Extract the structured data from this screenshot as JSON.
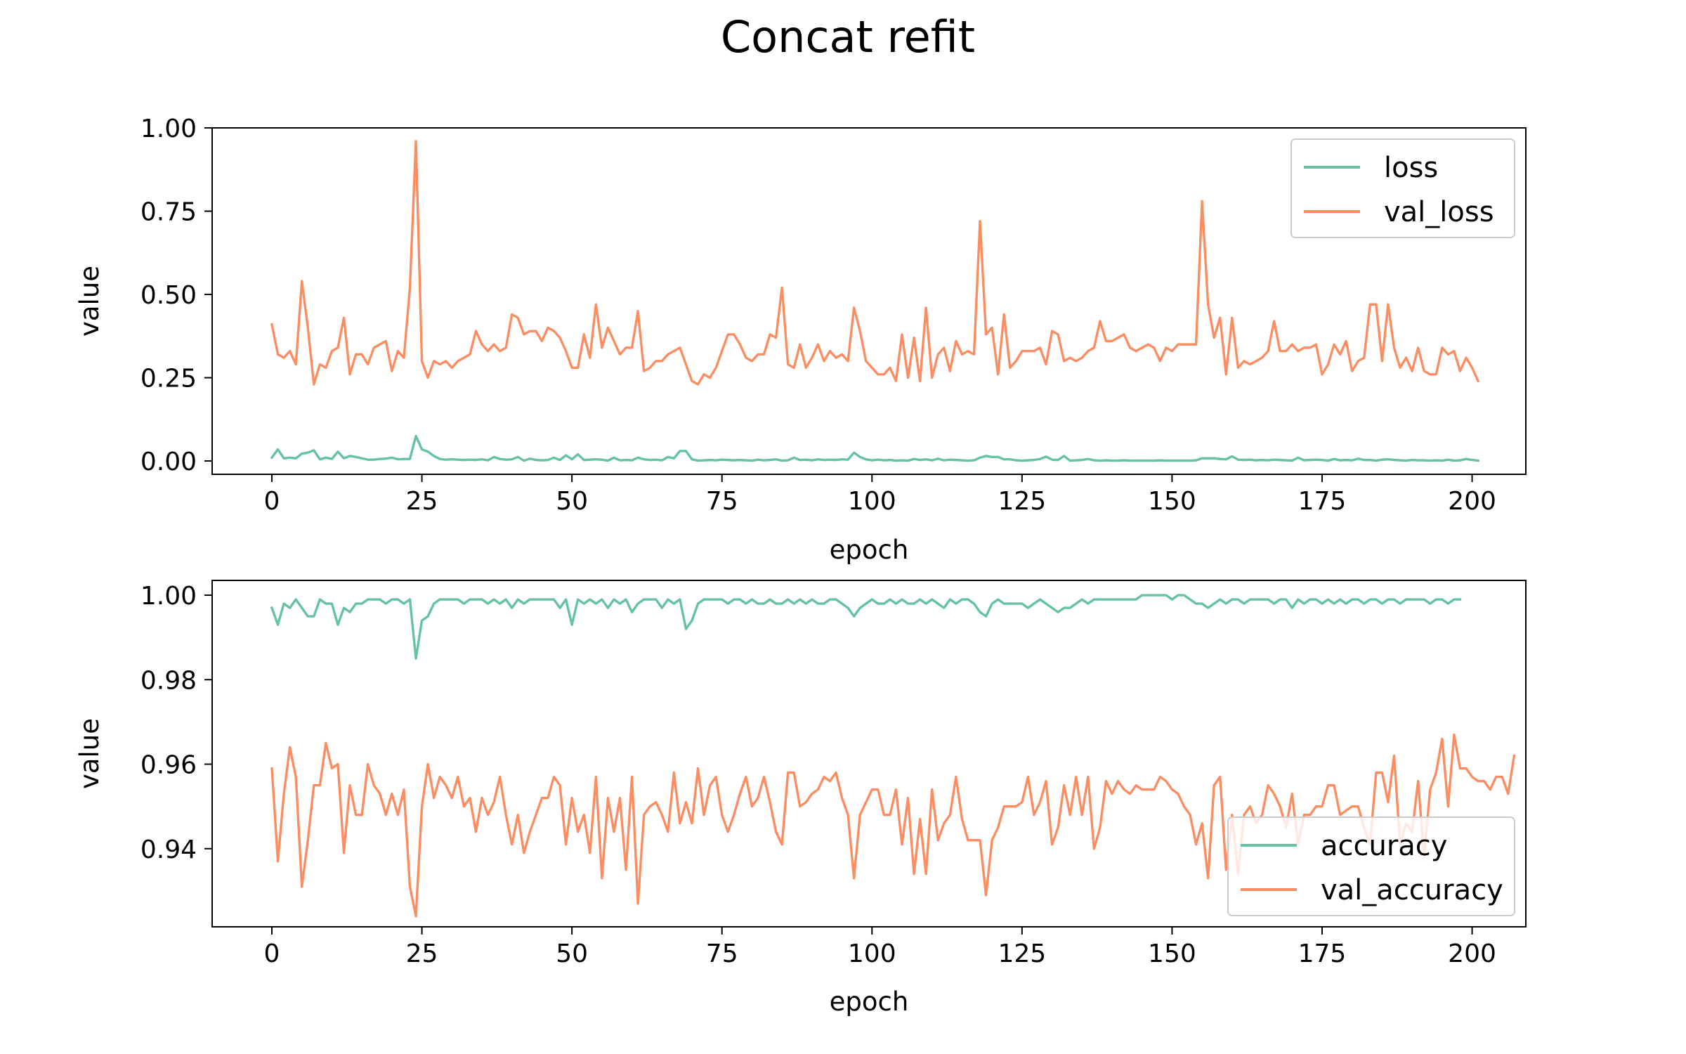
{
  "figure": {
    "title": "Concat refit"
  },
  "chart_data": [
    {
      "type": "line",
      "xlabel": "epoch",
      "ylabel": "value",
      "xlim": [
        -9.95,
        208.95
      ],
      "ylim": [
        -0.04,
        1.0
      ],
      "xticks": [
        0,
        25,
        50,
        75,
        100,
        125,
        150,
        175,
        200
      ],
      "yticks": [
        0.0,
        0.25,
        0.5,
        0.75,
        1.0
      ],
      "ytick_labels": [
        "0.00",
        "0.25",
        "0.50",
        "0.75",
        "1.00"
      ],
      "legend": "top-right",
      "grid": false,
      "series": [
        {
          "name": "loss",
          "color": "#66c2a5",
          "x_start": 0,
          "values": [
            0.01,
            0.035,
            0.008,
            0.01,
            0.008,
            0.022,
            0.025,
            0.032,
            0.005,
            0.01,
            0.006,
            0.028,
            0.008,
            0.015,
            0.012,
            0.008,
            0.004,
            0.004,
            0.006,
            0.007,
            0.01,
            0.005,
            0.006,
            0.006,
            0.075,
            0.035,
            0.028,
            0.015,
            0.006,
            0.004,
            0.005,
            0.004,
            0.003,
            0.004,
            0.003,
            0.005,
            0.002,
            0.012,
            0.006,
            0.004,
            0.005,
            0.012,
            0.001,
            0.007,
            0.003,
            0.002,
            0.003,
            0.01,
            0.003,
            0.017,
            0.005,
            0.02,
            0.003,
            0.004,
            0.005,
            0.004,
            0.001,
            0.01,
            0.002,
            0.003,
            0.002,
            0.01,
            0.005,
            0.003,
            0.004,
            0.002,
            0.012,
            0.008,
            0.03,
            0.03,
            0.005,
            0.001,
            0.002,
            0.003,
            0.002,
            0.004,
            0.003,
            0.002,
            0.003,
            0.002,
            0.001,
            0.004,
            0.002,
            0.003,
            0.005,
            0.001,
            0.002,
            0.01,
            0.003,
            0.004,
            0.002,
            0.005,
            0.003,
            0.004,
            0.003,
            0.005,
            0.004,
            0.025,
            0.012,
            0.005,
            0.002,
            0.004,
            0.002,
            0.003,
            0.001,
            0.002,
            0.001,
            0.006,
            0.003,
            0.005,
            0.002,
            0.007,
            0.002,
            0.004,
            0.003,
            0.002,
            0.001,
            0.002,
            0.01,
            0.015,
            0.012,
            0.012,
            0.005,
            0.005,
            0.002,
            0.001,
            0.002,
            0.003,
            0.006,
            0.013,
            0.004,
            0.003,
            0.015,
            0.001,
            0.002,
            0.003,
            0.006,
            0.002,
            0.001,
            0.002,
            0.001,
            0.001,
            0.002,
            0.001,
            0.001,
            0.001,
            0.001,
            0.001,
            0.002,
            0.001,
            0.001,
            0.001,
            0.001,
            0.001,
            0.002,
            0.008,
            0.008,
            0.008,
            0.006,
            0.005,
            0.014,
            0.004,
            0.003,
            0.004,
            0.002,
            0.003,
            0.002,
            0.004,
            0.003,
            0.002,
            0.001,
            0.01,
            0.002,
            0.003,
            0.004,
            0.003,
            0.001,
            0.006,
            0.002,
            0.003,
            0.002,
            0.007,
            0.003,
            0.003,
            0.001,
            0.004,
            0.005,
            0.003,
            0.002,
            0.001,
            0.003,
            0.002,
            0.002,
            0.001,
            0.002,
            0.001,
            0.004,
            0.001,
            0.002,
            0.006,
            0.003,
            0.001
          ]
        },
        {
          "name": "val_loss",
          "color": "#fc8d62",
          "x_start": 0,
          "values": [
            0.41,
            0.32,
            0.31,
            0.33,
            0.29,
            0.54,
            0.4,
            0.23,
            0.29,
            0.28,
            0.33,
            0.34,
            0.43,
            0.26,
            0.32,
            0.32,
            0.29,
            0.34,
            0.35,
            0.36,
            0.27,
            0.33,
            0.31,
            0.52,
            0.96,
            0.3,
            0.25,
            0.3,
            0.29,
            0.3,
            0.28,
            0.3,
            0.31,
            0.32,
            0.39,
            0.35,
            0.33,
            0.35,
            0.33,
            0.34,
            0.44,
            0.43,
            0.38,
            0.39,
            0.39,
            0.36,
            0.4,
            0.39,
            0.37,
            0.33,
            0.28,
            0.28,
            0.38,
            0.31,
            0.47,
            0.34,
            0.4,
            0.36,
            0.32,
            0.34,
            0.34,
            0.45,
            0.27,
            0.28,
            0.3,
            0.3,
            0.32,
            0.33,
            0.34,
            0.29,
            0.24,
            0.23,
            0.26,
            0.25,
            0.28,
            0.33,
            0.38,
            0.38,
            0.35,
            0.31,
            0.3,
            0.32,
            0.32,
            0.38,
            0.37,
            0.52,
            0.29,
            0.28,
            0.35,
            0.28,
            0.31,
            0.35,
            0.3,
            0.33,
            0.31,
            0.32,
            0.3,
            0.46,
            0.39,
            0.3,
            0.28,
            0.26,
            0.26,
            0.28,
            0.24,
            0.38,
            0.25,
            0.37,
            0.24,
            0.46,
            0.25,
            0.32,
            0.34,
            0.27,
            0.36,
            0.32,
            0.33,
            0.32,
            0.72,
            0.38,
            0.4,
            0.26,
            0.44,
            0.28,
            0.3,
            0.33,
            0.33,
            0.33,
            0.34,
            0.29,
            0.39,
            0.38,
            0.3,
            0.31,
            0.3,
            0.31,
            0.33,
            0.34,
            0.42,
            0.36,
            0.36,
            0.37,
            0.38,
            0.34,
            0.33,
            0.34,
            0.35,
            0.34,
            0.3,
            0.34,
            0.33,
            0.35,
            0.35,
            0.35,
            0.35,
            0.78,
            0.47,
            0.37,
            0.43,
            0.26,
            0.43,
            0.28,
            0.3,
            0.29,
            0.3,
            0.31,
            0.33,
            0.42,
            0.33,
            0.33,
            0.35,
            0.33,
            0.34,
            0.34,
            0.35,
            0.26,
            0.29,
            0.35,
            0.32,
            0.36,
            0.27,
            0.3,
            0.31,
            0.47,
            0.47,
            0.3,
            0.47,
            0.34,
            0.28,
            0.31,
            0.27,
            0.34,
            0.27,
            0.26,
            0.26,
            0.34,
            0.32,
            0.33,
            0.27,
            0.31,
            0.28,
            0.24
          ]
        }
      ]
    },
    {
      "type": "line",
      "xlabel": "epoch",
      "ylabel": "value",
      "xlim": [
        -9.95,
        208.95
      ],
      "ylim": [
        0.9215,
        1.0035
      ],
      "xticks": [
        0,
        25,
        50,
        75,
        100,
        125,
        150,
        175,
        200
      ],
      "yticks": [
        0.94,
        0.96,
        0.98,
        1.0
      ],
      "ytick_labels": [
        "0.94",
        "0.96",
        "0.98",
        "1.00"
      ],
      "legend": "lower-right",
      "grid": false,
      "series": [
        {
          "name": "accuracy",
          "color": "#66c2a5",
          "x_start": 0,
          "values": [
            0.997,
            0.993,
            0.998,
            0.997,
            0.999,
            0.997,
            0.995,
            0.995,
            0.999,
            0.998,
            0.998,
            0.993,
            0.997,
            0.996,
            0.998,
            0.998,
            0.999,
            0.999,
            0.999,
            0.998,
            0.999,
            0.999,
            0.998,
            0.999,
            0.985,
            0.994,
            0.995,
            0.998,
            0.999,
            0.999,
            0.999,
            0.999,
            0.998,
            0.999,
            0.999,
            0.999,
            0.998,
            0.999,
            0.998,
            0.999,
            0.997,
            0.999,
            0.998,
            0.999,
            0.999,
            0.999,
            0.999,
            0.999,
            0.997,
            0.999,
            0.993,
            0.999,
            0.998,
            0.999,
            0.998,
            0.999,
            0.997,
            0.999,
            0.998,
            0.999,
            0.996,
            0.998,
            0.999,
            0.999,
            0.999,
            0.997,
            0.999,
            0.998,
            0.999,
            0.992,
            0.994,
            0.998,
            0.999,
            0.999,
            0.999,
            0.999,
            0.998,
            0.999,
            0.999,
            0.998,
            0.999,
            0.998,
            0.998,
            0.999,
            0.998,
            0.998,
            0.999,
            0.998,
            0.999,
            0.998,
            0.999,
            0.998,
            0.998,
            0.999,
            0.999,
            0.998,
            0.997,
            0.995,
            0.997,
            0.998,
            0.999,
            0.998,
            0.998,
            0.999,
            0.998,
            0.999,
            0.998,
            0.998,
            0.999,
            0.998,
            0.999,
            0.998,
            0.997,
            0.999,
            0.998,
            0.999,
            0.999,
            0.998,
            0.996,
            0.995,
            0.998,
            0.999,
            0.998,
            0.998,
            0.998,
            0.998,
            0.997,
            0.998,
            0.999,
            0.998,
            0.997,
            0.996,
            0.997,
            0.997,
            0.998,
            0.999,
            0.998,
            0.999,
            0.999,
            0.999,
            0.999,
            0.999,
            0.999,
            0.999,
            0.999,
            1.0,
            1.0,
            1.0,
            1.0,
            1.0,
            0.999,
            1.0,
            1.0,
            0.999,
            0.998,
            0.998,
            0.997,
            0.998,
            0.999,
            0.998,
            0.999,
            0.999,
            0.998,
            0.999,
            0.999,
            0.999,
            0.999,
            0.998,
            0.999,
            0.999,
            0.997,
            0.999,
            0.998,
            0.999,
            0.999,
            0.998,
            0.999,
            0.998,
            0.999,
            0.998,
            0.999,
            0.999,
            0.998,
            0.999,
            0.999,
            0.998,
            0.999,
            0.999,
            0.998,
            0.999,
            0.999,
            0.999,
            0.999,
            0.998,
            0.999,
            0.999,
            0.998,
            0.999,
            0.999
          ]
        },
        {
          "name": "val_accuracy",
          "color": "#fc8d62",
          "x_start": 0,
          "values": [
            0.959,
            0.937,
            0.953,
            0.964,
            0.957,
            0.931,
            0.942,
            0.955,
            0.955,
            0.965,
            0.959,
            0.96,
            0.939,
            0.955,
            0.948,
            0.948,
            0.96,
            0.955,
            0.953,
            0.948,
            0.953,
            0.948,
            0.954,
            0.931,
            0.924,
            0.95,
            0.96,
            0.952,
            0.957,
            0.955,
            0.952,
            0.957,
            0.95,
            0.952,
            0.944,
            0.952,
            0.948,
            0.951,
            0.957,
            0.948,
            0.941,
            0.948,
            0.939,
            0.944,
            0.948,
            0.952,
            0.952,
            0.957,
            0.955,
            0.941,
            0.952,
            0.944,
            0.948,
            0.939,
            0.957,
            0.933,
            0.952,
            0.944,
            0.952,
            0.935,
            0.957,
            0.927,
            0.948,
            0.95,
            0.951,
            0.948,
            0.944,
            0.958,
            0.946,
            0.951,
            0.946,
            0.959,
            0.948,
            0.955,
            0.957,
            0.948,
            0.944,
            0.948,
            0.953,
            0.957,
            0.95,
            0.952,
            0.957,
            0.951,
            0.944,
            0.941,
            0.958,
            0.958,
            0.95,
            0.951,
            0.953,
            0.954,
            0.957,
            0.956,
            0.958,
            0.952,
            0.948,
            0.933,
            0.948,
            0.951,
            0.954,
            0.954,
            0.948,
            0.948,
            0.954,
            0.941,
            0.952,
            0.934,
            0.947,
            0.934,
            0.954,
            0.942,
            0.946,
            0.948,
            0.957,
            0.947,
            0.942,
            0.942,
            0.942,
            0.929,
            0.942,
            0.945,
            0.95,
            0.95,
            0.95,
            0.951,
            0.957,
            0.948,
            0.951,
            0.956,
            0.941,
            0.945,
            0.955,
            0.948,
            0.957,
            0.948,
            0.957,
            0.94,
            0.945,
            0.956,
            0.953,
            0.956,
            0.954,
            0.953,
            0.955,
            0.954,
            0.954,
            0.954,
            0.957,
            0.956,
            0.954,
            0.953,
            0.95,
            0.948,
            0.941,
            0.946,
            0.933,
            0.955,
            0.957,
            0.935,
            0.948,
            0.934,
            0.948,
            0.95,
            0.946,
            0.948,
            0.955,
            0.953,
            0.95,
            0.945,
            0.953,
            0.941,
            0.948,
            0.948,
            0.95,
            0.95,
            0.955,
            0.955,
            0.948,
            0.949,
            0.95,
            0.95,
            0.945,
            0.941,
            0.958,
            0.958,
            0.951,
            0.962,
            0.941,
            0.946,
            0.944,
            0.956,
            0.938,
            0.954,
            0.958,
            0.966,
            0.95,
            0.967,
            0.959,
            0.959,
            0.957,
            0.956,
            0.956,
            0.954,
            0.957,
            0.957,
            0.953,
            0.962
          ]
        }
      ]
    }
  ]
}
